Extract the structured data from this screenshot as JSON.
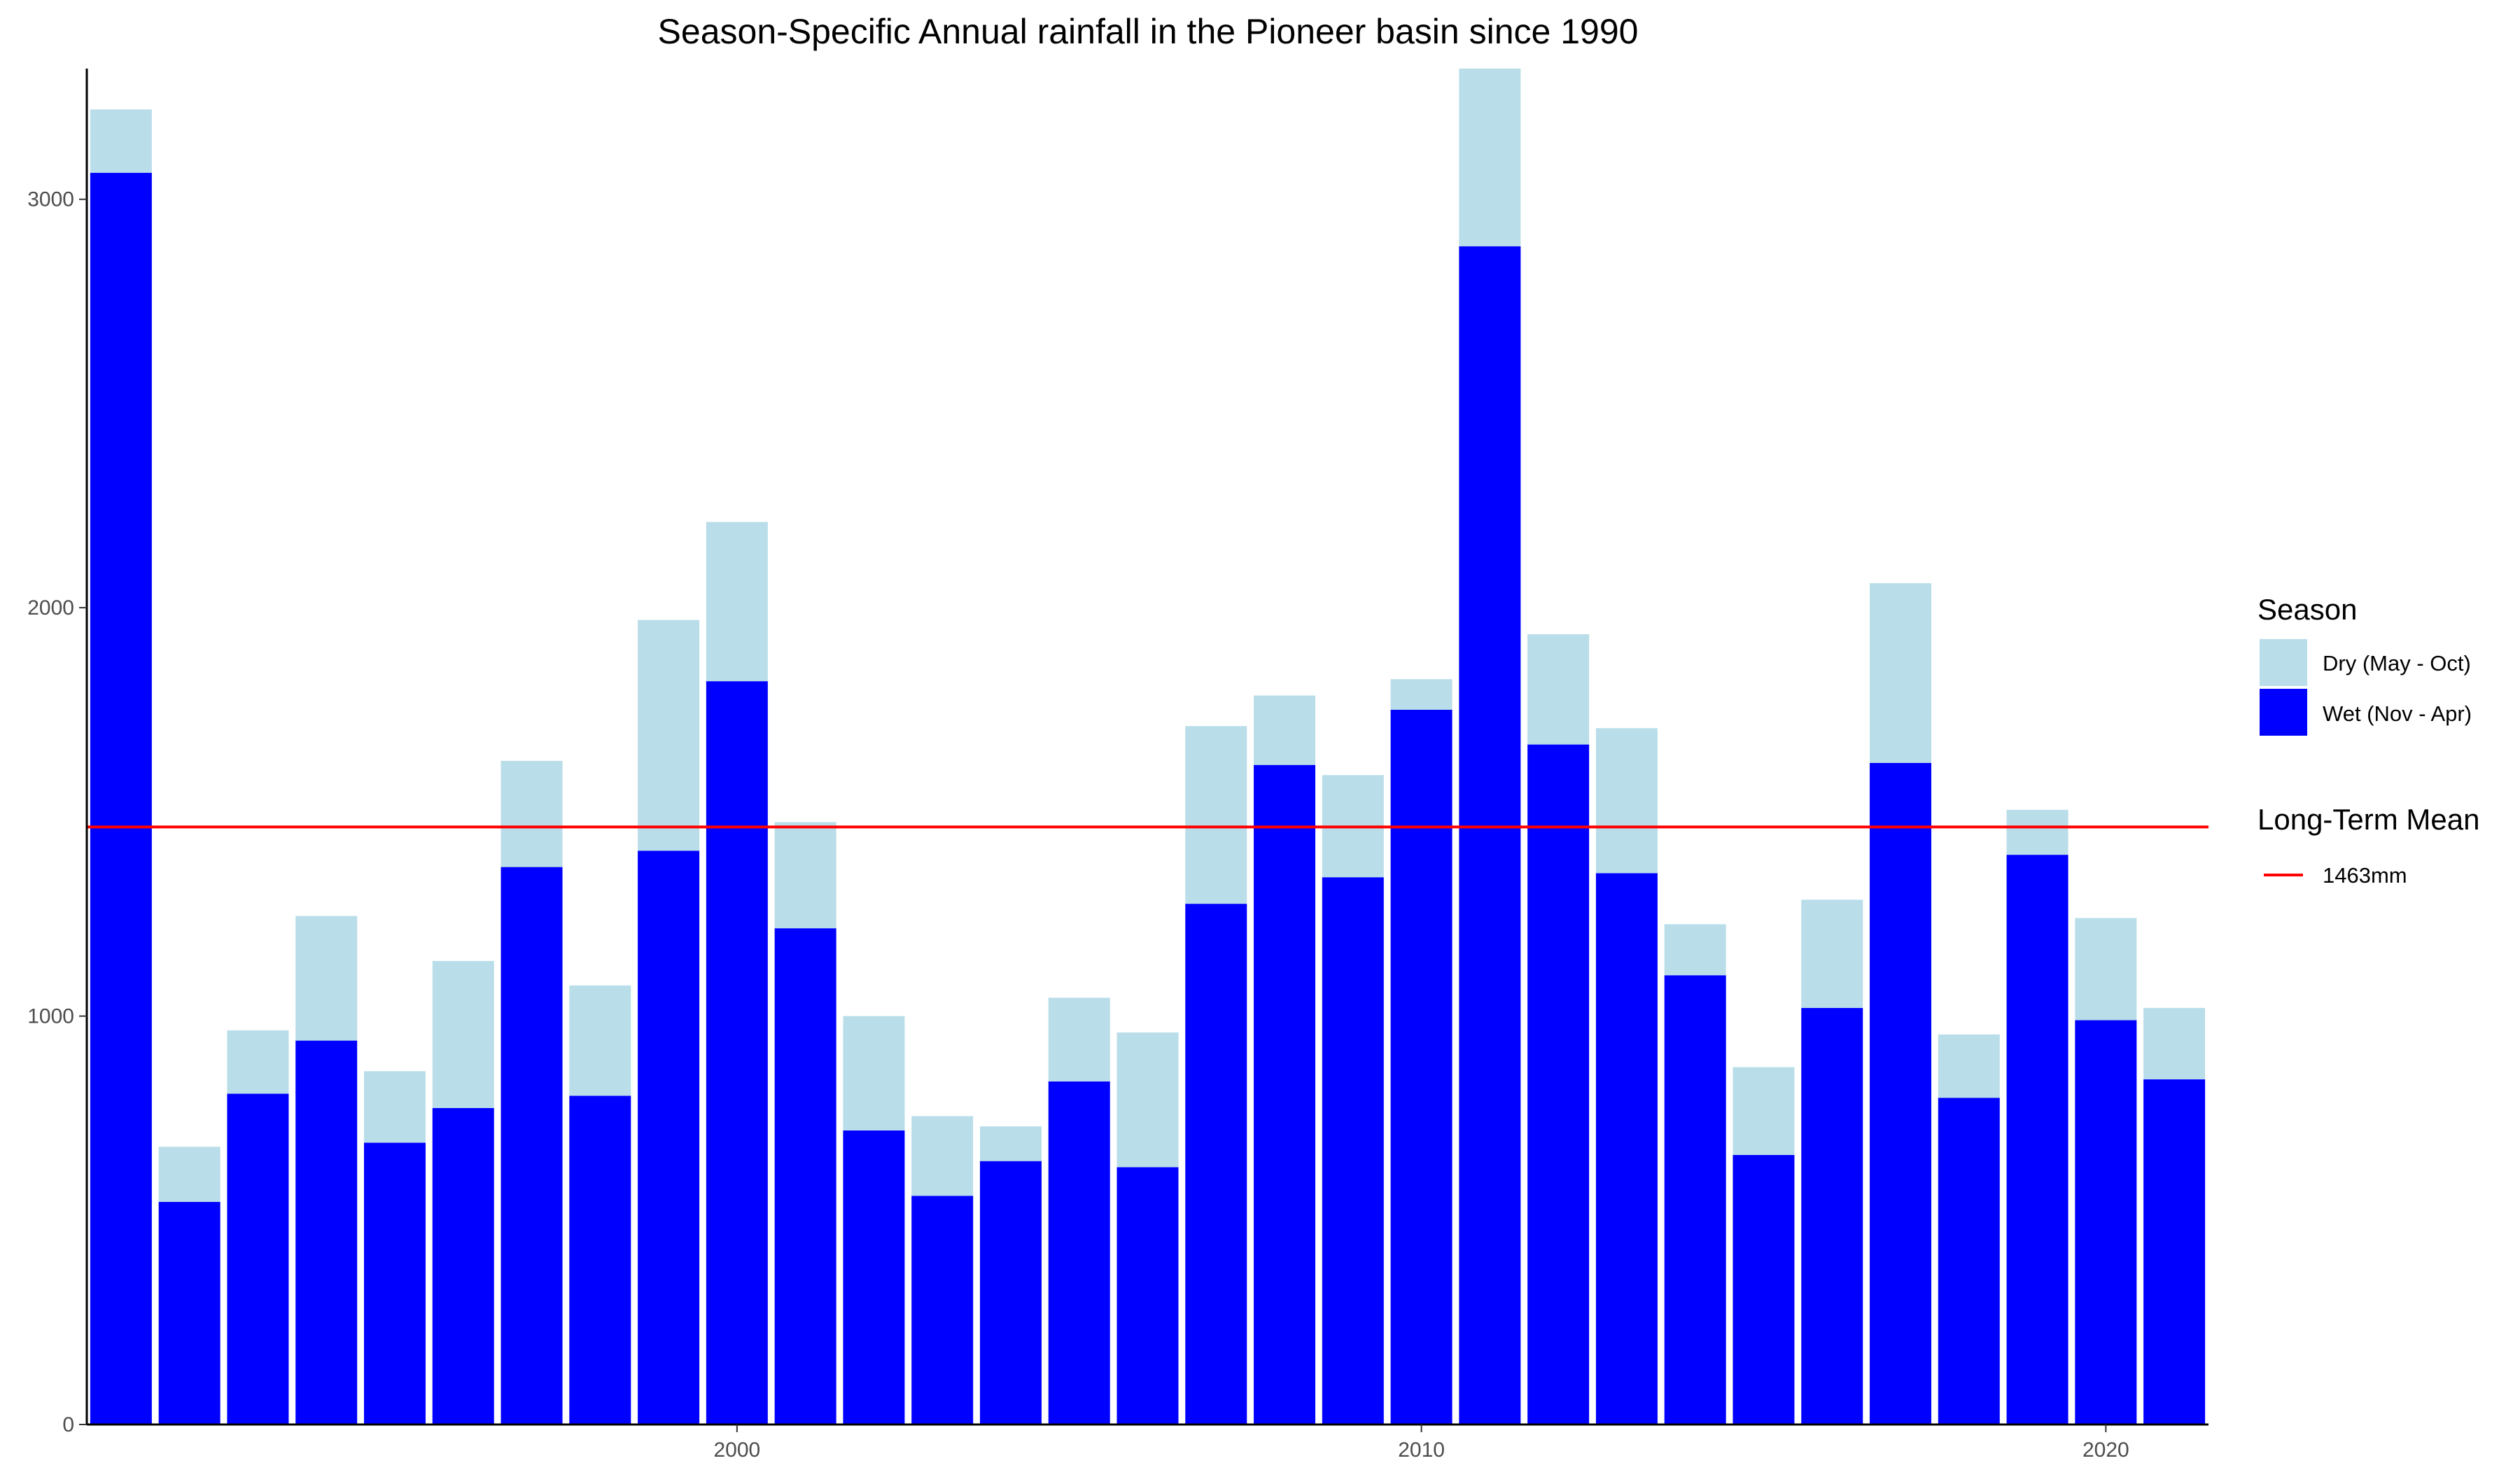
{
  "chart_data": {
    "type": "bar",
    "stacked": true,
    "title": "Season-Specific Annual rainfall in the Pioneer basin since 1990",
    "xlabel": "",
    "ylabel": "",
    "xlim": [
      1990.5,
      2021.5
    ],
    "ylim": [
      0,
      3320
    ],
    "x_ticks": [
      2000,
      2010,
      2020
    ],
    "y_ticks": [
      0,
      1000,
      2000,
      3000
    ],
    "grid": false,
    "legend_position": "right",
    "x": [
      1991,
      1992,
      1993,
      1994,
      1995,
      1996,
      1997,
      1998,
      1999,
      2000,
      2001,
      2002,
      2003,
      2004,
      2005,
      2006,
      2007,
      2008,
      2009,
      2010,
      2011,
      2012,
      2013,
      2014,
      2015,
      2016,
      2017,
      2018,
      2019,
      2020,
      2021
    ],
    "series": [
      {
        "name": "Wet (Nov - Apr)",
        "color": "#0000ff",
        "values": [
          3065,
          545,
          810,
          940,
          690,
          775,
          1365,
          805,
          1405,
          1820,
          1215,
          720,
          560,
          645,
          840,
          630,
          1275,
          1615,
          1340,
          1750,
          2885,
          1665,
          1350,
          1100,
          660,
          1020,
          1620,
          800,
          1395,
          990,
          845
        ]
      },
      {
        "name": "Dry (May - Oct)",
        "color": "#b9dde9",
        "values": [
          155,
          135,
          155,
          305,
          175,
          360,
          260,
          270,
          565,
          390,
          260,
          280,
          195,
          85,
          205,
          330,
          435,
          170,
          250,
          75,
          435,
          270,
          355,
          125,
          215,
          265,
          440,
          155,
          110,
          250,
          175
        ]
      }
    ],
    "reference_line": {
      "legend_title": "Long-Term Mean",
      "label": "1463mm",
      "value": 1463,
      "color": "#ff0000"
    },
    "legend": {
      "title": "Season",
      "entries": [
        {
          "label": "Dry (May - Oct)",
          "color": "#b9dde9"
        },
        {
          "label": "Wet (Nov - Apr)",
          "color": "#0000ff"
        }
      ]
    }
  }
}
